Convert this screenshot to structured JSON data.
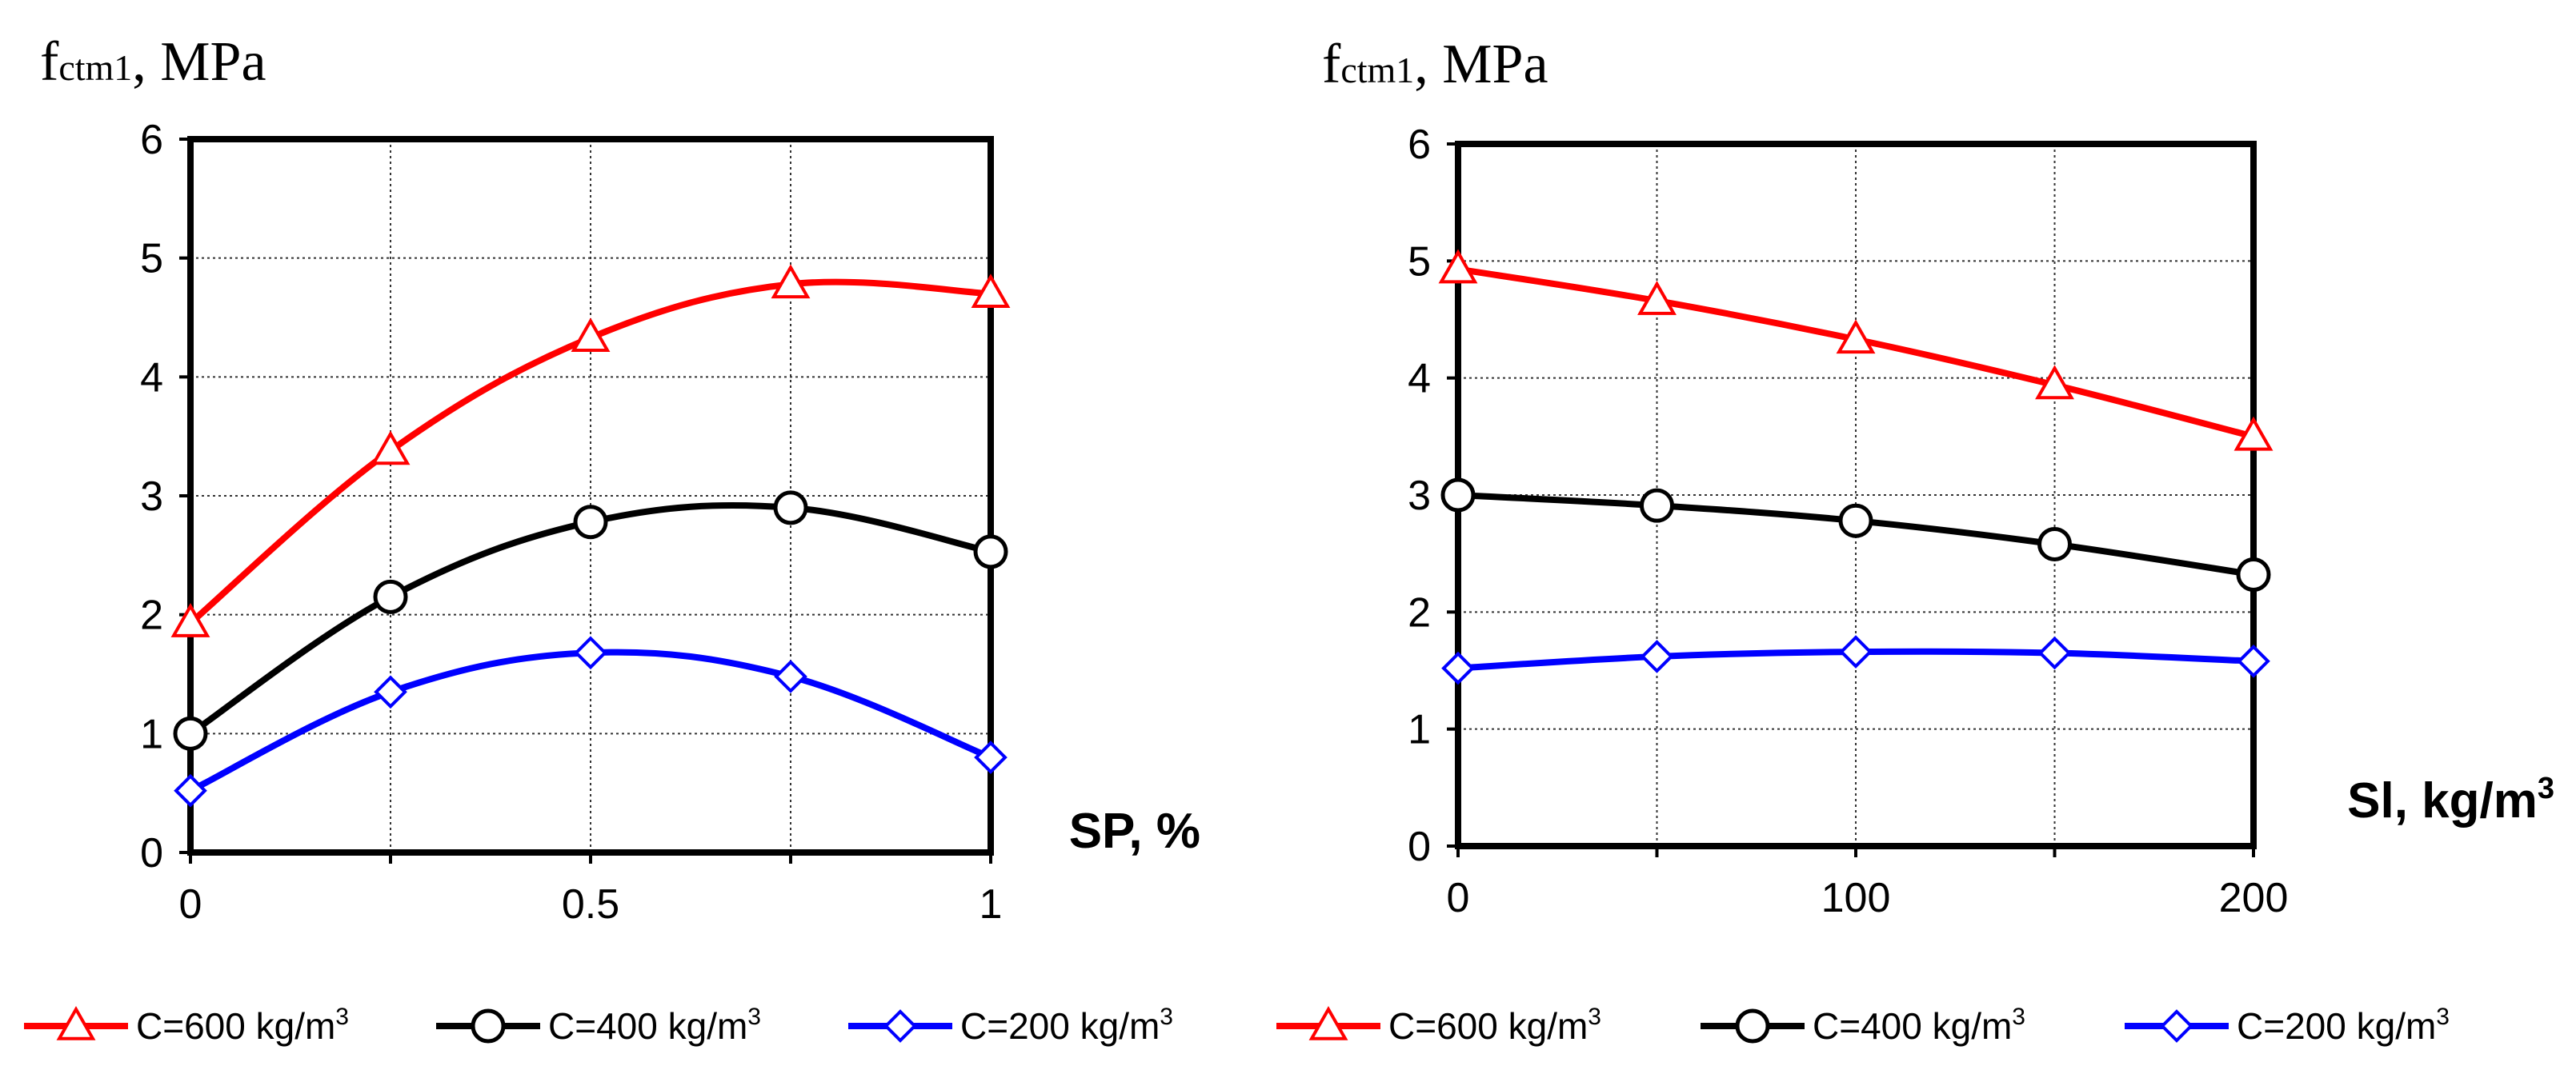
{
  "chart_data": [
    {
      "type": "line",
      "ylabel": {
        "main": "f",
        "sub": "ctm1",
        "unit": ", MPa"
      },
      "xlabel": {
        "main": "SP, %",
        "sup": ""
      },
      "x": [
        0,
        0.25,
        0.5,
        0.75,
        1
      ],
      "xlim": [
        0,
        1
      ],
      "ylim": [
        0,
        6
      ],
      "xticks": [
        0,
        0.5,
        1
      ],
      "xtick_labels": [
        "0",
        "0.5",
        "1"
      ],
      "yticks": [
        0,
        1,
        2,
        3,
        4,
        5,
        6
      ],
      "ytick_labels": [
        "0",
        "1",
        "2",
        "3",
        "4",
        "5",
        "6"
      ],
      "grid": true,
      "series": [
        {
          "name": "C=600 kg/m",
          "sup": "3",
          "color": "#ff0000",
          "marker": "triangle",
          "values": [
            1.93,
            3.38,
            4.33,
            4.78,
            4.7
          ]
        },
        {
          "name": "C=400 kg/m",
          "sup": "3",
          "color": "#000000",
          "marker": "circle",
          "values": [
            1.0,
            2.15,
            2.78,
            2.9,
            2.53
          ]
        },
        {
          "name": "C=200 kg/m",
          "sup": "3",
          "color": "#0000ff",
          "marker": "diamond",
          "values": [
            0.52,
            1.35,
            1.68,
            1.48,
            0.8
          ]
        }
      ]
    },
    {
      "type": "line",
      "ylabel": {
        "main": "f",
        "sub": "ctm1",
        "unit": ", MPa"
      },
      "xlabel": {
        "main": "Sl, kg/m",
        "sup": "3"
      },
      "x": [
        0,
        50,
        100,
        150,
        200
      ],
      "xlim": [
        0,
        200
      ],
      "ylim": [
        0,
        6
      ],
      "xticks": [
        0,
        100,
        200
      ],
      "xtick_labels": [
        "0",
        "100",
        "200"
      ],
      "yticks": [
        0,
        1,
        2,
        3,
        4,
        5,
        6
      ],
      "ytick_labels": [
        "0",
        "1",
        "2",
        "3",
        "4",
        "5",
        "6"
      ],
      "grid": true,
      "series": [
        {
          "name": "C=600 kg/m",
          "sup": "3",
          "color": "#ff0000",
          "marker": "triangle",
          "values": [
            4.93,
            4.66,
            4.33,
            3.94,
            3.5
          ]
        },
        {
          "name": "C=400 kg/m",
          "sup": "3",
          "color": "#000000",
          "marker": "circle",
          "values": [
            3.0,
            2.91,
            2.78,
            2.58,
            2.32
          ]
        },
        {
          "name": "C=200 kg/m",
          "sup": "3",
          "color": "#0000ff",
          "marker": "diamond",
          "values": [
            1.52,
            1.62,
            1.66,
            1.65,
            1.58
          ]
        }
      ]
    }
  ]
}
